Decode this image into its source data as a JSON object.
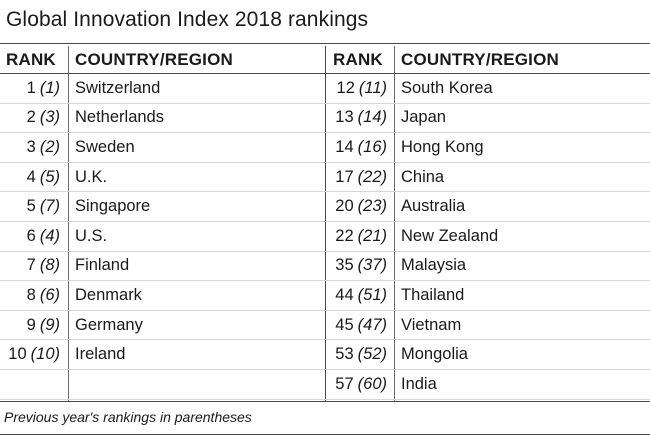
{
  "title": "Global Innovation Index 2018 rankings",
  "headers": {
    "rank": "RANK",
    "country": "COUNTRY/REGION"
  },
  "left_rows": [
    {
      "rank": "1",
      "prev": "(1)",
      "country": "Switzerland"
    },
    {
      "rank": "2",
      "prev": "(3)",
      "country": "Netherlands"
    },
    {
      "rank": "3",
      "prev": "(2)",
      "country": "Sweden"
    },
    {
      "rank": "4",
      "prev": "(5)",
      "country": "U.K."
    },
    {
      "rank": "5",
      "prev": "(7)",
      "country": "Singapore"
    },
    {
      "rank": "6",
      "prev": "(4)",
      "country": "U.S."
    },
    {
      "rank": "7",
      "prev": "(8)",
      "country": "Finland"
    },
    {
      "rank": "8",
      "prev": "(6)",
      "country": "Denmark"
    },
    {
      "rank": "9",
      "prev": "(9)",
      "country": "Germany"
    },
    {
      "rank": "10",
      "prev": "(10)",
      "country": "Ireland"
    },
    {
      "rank": "",
      "prev": "",
      "country": ""
    }
  ],
  "right_rows": [
    {
      "rank": "12",
      "prev": "(11)",
      "country": "South Korea"
    },
    {
      "rank": "13",
      "prev": "(14)",
      "country": "Japan"
    },
    {
      "rank": "14",
      "prev": "(16)",
      "country": "Hong Kong"
    },
    {
      "rank": "17",
      "prev": "(22)",
      "country": "China"
    },
    {
      "rank": "20",
      "prev": "(23)",
      "country": "Australia"
    },
    {
      "rank": "22",
      "prev": "(21)",
      "country": "New Zealand"
    },
    {
      "rank": "35",
      "prev": "(37)",
      "country": "Malaysia"
    },
    {
      "rank": "44",
      "prev": "(51)",
      "country": "Thailand"
    },
    {
      "rank": "45",
      "prev": "(47)",
      "country": "Vietnam"
    },
    {
      "rank": "53",
      "prev": "(52)",
      "country": "Mongolia"
    },
    {
      "rank": "57",
      "prev": "(60)",
      "country": "India"
    }
  ],
  "footnote": "Previous year's rankings in parentheses"
}
